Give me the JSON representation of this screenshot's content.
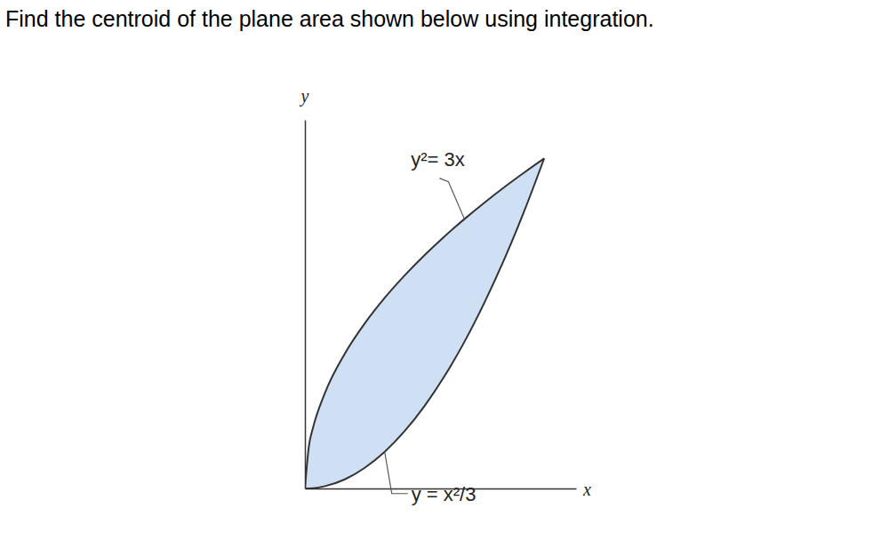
{
  "chart_data": {
    "type": "area",
    "title": "Find the centroid of the plane area shown below using integration.",
    "x_label": "x",
    "y_label": "y",
    "x": [
      0,
      0.05,
      0.1,
      0.25,
      0.5,
      0.75,
      1,
      1.25,
      1.5,
      1.75,
      2,
      2.25,
      2.5,
      2.75,
      3
    ],
    "series": [
      {
        "name": "y²= 3x",
        "color": "#333333",
        "values": [
          0,
          0.387,
          0.548,
          0.866,
          1.225,
          1.5,
          1.732,
          1.936,
          2.121,
          2.291,
          2.449,
          2.598,
          2.739,
          2.872,
          3
        ]
      },
      {
        "name": "y = x²/3",
        "color": "#333333",
        "values": [
          0,
          0.001,
          0.003,
          0.021,
          0.083,
          0.188,
          0.333,
          0.521,
          0.75,
          1.021,
          1.333,
          1.688,
          2.083,
          2.521,
          3
        ]
      }
    ],
    "color": "#cfe0f5",
    "xlim": [
      0,
      3.4
    ],
    "ylim": [
      0,
      3.35
    ],
    "tick_labels": false
  }
}
